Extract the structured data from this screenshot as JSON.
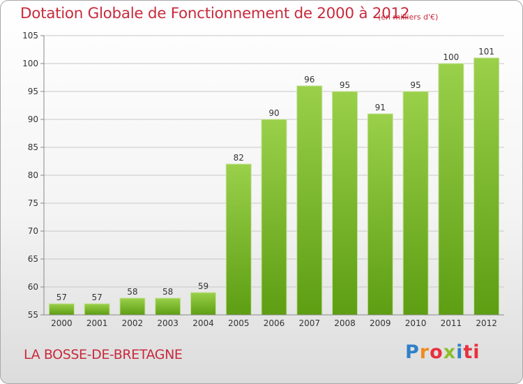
{
  "chart_data": {
    "type": "bar",
    "title": "Dotation Globale de Fonctionnement de 2000 à 2012",
    "unit_note": "(en milliers d'€)",
    "categories": [
      "2000",
      "2001",
      "2002",
      "2003",
      "2004",
      "2005",
      "2006",
      "2007",
      "2008",
      "2009",
      "2010",
      "2011",
      "2012"
    ],
    "values": [
      57,
      57,
      58,
      58,
      59,
      82,
      90,
      96,
      95,
      91,
      95,
      100,
      101
    ],
    "ylim": [
      55,
      105
    ],
    "yticks": [
      55,
      60,
      65,
      70,
      75,
      80,
      85,
      90,
      95,
      100,
      105
    ],
    "xlabel": "",
    "ylabel": "",
    "grid": true,
    "bar_color_top": "#9ad04a",
    "bar_color_bottom": "#5d9e13"
  },
  "footer": {
    "commune": "LA BOSSE-DE-BRETAGNE",
    "logo_letters": [
      "P",
      "r",
      "o",
      "x",
      "i",
      "ti"
    ]
  },
  "colors": {
    "title": "#c82a3c",
    "grid": "#c8c8c8",
    "axis_text": "#333333"
  }
}
